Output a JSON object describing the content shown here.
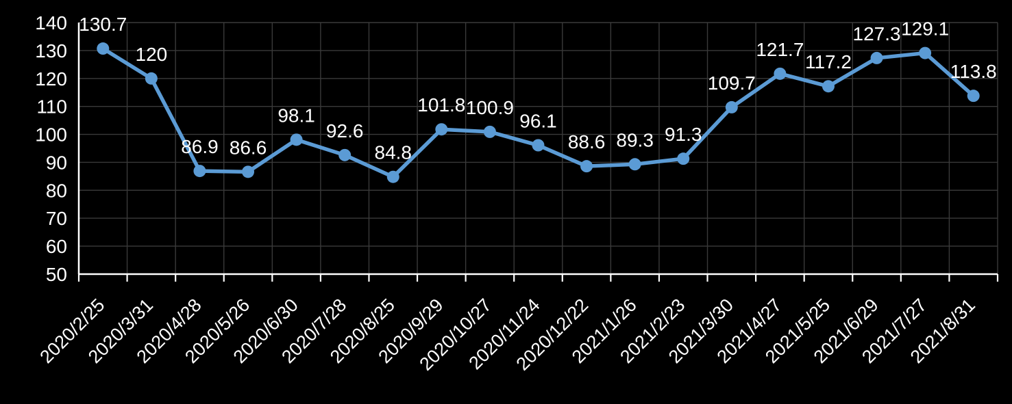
{
  "chart_data": {
    "type": "line",
    "title": "",
    "legend": "none",
    "grid": true,
    "categories": [
      "2020/2/25",
      "2020/3/31",
      "2020/4/28",
      "2020/5/26",
      "2020/6/30",
      "2020/7/28",
      "2020/8/25",
      "2020/9/29",
      "2020/10/27",
      "2020/11/24",
      "2020/12/22",
      "2021/1/26",
      "2021/2/23",
      "2021/3/30",
      "2021/4/27",
      "2021/5/25",
      "2021/6/29",
      "2021/7/27",
      "2021/8/31"
    ],
    "values": [
      130.7,
      120,
      86.9,
      86.6,
      98.1,
      92.6,
      84.8,
      101.8,
      100.9,
      96.1,
      88.6,
      89.3,
      91.3,
      109.7,
      121.7,
      117.2,
      127.3,
      129.1,
      113.8
    ],
    "point_labels": [
      "130.7",
      "120",
      "86.9",
      "86.6",
      "98.1",
      "92.6",
      "84.8",
      "101.8",
      "100.9",
      "96.1",
      "88.6",
      "89.3",
      "91.3",
      "109.7",
      "121.7",
      "117.2",
      "127.3",
      "129.1",
      "113.8"
    ],
    "xlabel": "",
    "ylabel": "",
    "ylim": [
      50,
      140
    ],
    "ytick_step": 10,
    "ytick_labels": [
      "50",
      "60",
      "70",
      "80",
      "90",
      "100",
      "110",
      "120",
      "130",
      "140"
    ],
    "x_tick_rotation_deg": 45,
    "colors": {
      "background": "#000000",
      "series_line": "#5B9BD5",
      "marker_fill": "#5B9BD5",
      "data_label_text": "#FFFFFF",
      "axis_label_text": "#FFFFFF",
      "axis_line": "#FFFFFF",
      "gridline": "#3A3A3A"
    }
  }
}
